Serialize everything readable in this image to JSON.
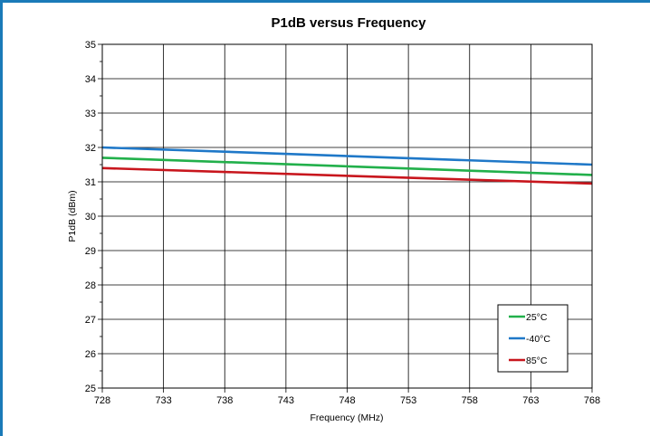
{
  "chart_data": {
    "type": "line",
    "title": "P1dB versus Frequency",
    "xlabel": "Frequency (MHz)",
    "ylabel": "P1dB (dBm)",
    "xlim": [
      728,
      768
    ],
    "ylim": [
      25,
      35
    ],
    "x_ticks": [
      "728",
      "733",
      "738",
      "743",
      "748",
      "753",
      "758",
      "763",
      "768"
    ],
    "y_ticks": [
      "25",
      "26",
      "27",
      "28",
      "29",
      "30",
      "31",
      "32",
      "33",
      "34",
      "35"
    ],
    "grid": true,
    "legend_position": "bottom-right",
    "x": [
      728,
      768
    ],
    "series": [
      {
        "name": "25°C",
        "color": "#22b04b",
        "values": [
          31.7,
          31.2
        ]
      },
      {
        "name": "-40°C",
        "color": "#1f78c8",
        "values": [
          32.0,
          31.5
        ]
      },
      {
        "name": "85°C",
        "color": "#c8161d",
        "values": [
          31.4,
          30.95
        ]
      }
    ]
  }
}
